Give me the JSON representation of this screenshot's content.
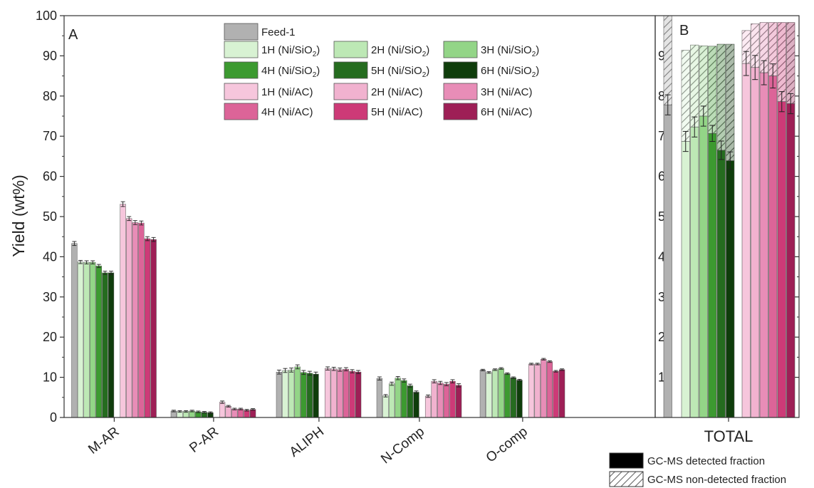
{
  "chart_data": {
    "type": "bar",
    "ylabel": "Yield (wt%)",
    "ylim": [
      0,
      100
    ],
    "yticks_a": [
      "0",
      "10",
      "20",
      "30",
      "40",
      "50",
      "60",
      "70",
      "80",
      "90",
      "100"
    ],
    "yticks_b": [
      "10",
      "20",
      "30",
      "40",
      "50",
      "60",
      "70",
      "80",
      "90"
    ],
    "panel_a_label": "A",
    "panel_b_label": "B",
    "categories": [
      "M-AR",
      "P-AR",
      "ALIPH",
      "N-Comp",
      "O-comp"
    ],
    "total_label": "TOTAL",
    "series": [
      {
        "name": "Feed-1",
        "color": "#b1b1b1",
        "values": [
          43.3,
          1.6,
          11.3,
          9.7,
          11.8
        ],
        "errors": [
          0.5,
          0.2,
          0.5,
          0.4,
          0.2
        ],
        "total_detected": 77.8,
        "total": 100,
        "total_error": 2.5
      },
      {
        "name": "1H (Ni/SiO",
        "sub": "2",
        "suffix": ")",
        "color": "#d8f2d3",
        "values": [
          38.7,
          1.5,
          11.7,
          5.4,
          11.2
        ],
        "errors": [
          0.4,
          0.2,
          0.5,
          0.3,
          0.2
        ],
        "total_detected": 68.7,
        "total": 91.4,
        "total_error": 2.5
      },
      {
        "name": "2H (Ni/SiO",
        "sub": "2",
        "suffix": ")",
        "color": "#bde8b5",
        "values": [
          38.6,
          1.5,
          11.8,
          8.4,
          11.9
        ],
        "errors": [
          0.4,
          0.2,
          0.5,
          0.4,
          0.2
        ],
        "total_detected": 72.3,
        "total": 92.7,
        "total_error": 2.5
      },
      {
        "name": "3H (Ni/SiO",
        "sub": "2",
        "suffix": ")",
        "color": "#93d587",
        "values": [
          38.6,
          1.6,
          12.6,
          9.8,
          12.2
        ],
        "errors": [
          0.4,
          0.2,
          0.5,
          0.4,
          0.2
        ],
        "total_detected": 75.0,
        "total": 92.5,
        "total_error": 2.5
      },
      {
        "name": "4H (Ni/SiO",
        "sub": "2",
        "suffix": ")",
        "color": "#3c9a30",
        "values": [
          37.7,
          1.4,
          11.2,
          9.2,
          10.9
        ],
        "errors": [
          0.4,
          0.2,
          0.5,
          0.4,
          0.2
        ],
        "total_detected": 70.7,
        "total": 92.4,
        "total_error": 2.0
      },
      {
        "name": "5H (Ni/SiO",
        "sub": "2",
        "suffix": ")",
        "color": "#256c1f",
        "values": [
          36.0,
          1.3,
          11.0,
          7.9,
          9.9
        ],
        "errors": [
          0.4,
          0.2,
          0.5,
          0.4,
          0.2
        ],
        "total_detected": 66.5,
        "total": 92.9,
        "total_error": 2.3
      },
      {
        "name": "6H (Ni/SiO",
        "sub": "2",
        "suffix": ")",
        "color": "#0f3d0b",
        "values": [
          36.0,
          1.2,
          10.8,
          6.3,
          9.3
        ],
        "errors": [
          0.4,
          0.2,
          0.5,
          0.3,
          0.2
        ],
        "total_detected": 63.9,
        "total": 92.9,
        "total_error": 2.2
      },
      {
        "name": "1H (Ni/AC)",
        "color": "#f6c6dc",
        "values": [
          53.1,
          3.8,
          12.2,
          5.3,
          13.3
        ],
        "errors": [
          0.6,
          0.3,
          0.4,
          0.3,
          0.2
        ],
        "total_detected": 88.1,
        "total": 96.3,
        "total_error": 3.0
      },
      {
        "name": "2H (Ni/AC)",
        "color": "#f1b2cf",
        "values": [
          49.5,
          2.8,
          12.1,
          9.0,
          13.3
        ],
        "errors": [
          0.5,
          0.2,
          0.4,
          0.4,
          0.2
        ],
        "total_detected": 87.1,
        "total": 98.0,
        "total_error": 3.0
      },
      {
        "name": "3H (Ni/AC)",
        "color": "#e88db7",
        "values": [
          48.5,
          2.1,
          11.9,
          8.6,
          14.5
        ],
        "errors": [
          0.5,
          0.2,
          0.4,
          0.4,
          0.2
        ],
        "total_detected": 85.8,
        "total": 98.3,
        "total_error": 3.0
      },
      {
        "name": "4H (Ni/AC)",
        "color": "#dc6498",
        "values": [
          48.4,
          2.1,
          12.0,
          8.3,
          13.9
        ],
        "errors": [
          0.5,
          0.2,
          0.4,
          0.4,
          0.2
        ],
        "total_detected": 85.0,
        "total": 98.3,
        "total_error": 3.0
      },
      {
        "name": "5H (Ni/AC)",
        "color": "#cd3a77",
        "values": [
          44.5,
          1.8,
          11.5,
          9.0,
          11.5
        ],
        "errors": [
          0.5,
          0.2,
          0.4,
          0.4,
          0.2
        ],
        "total_detected": 78.6,
        "total": 98.3,
        "total_error": 2.5
      },
      {
        "name": "6H (Ni/AC)",
        "color": "#9e1f56",
        "values": [
          44.3,
          2.0,
          11.3,
          8.0,
          11.9
        ],
        "errors": [
          0.5,
          0.2,
          0.4,
          0.4,
          0.2
        ],
        "total_detected": 78.1,
        "total": 98.3,
        "total_error": 2.5
      }
    ],
    "fraction_legend": [
      {
        "name": "GC-MS detected fraction",
        "pattern": "solid"
      },
      {
        "name": "GC-MS non-detected fraction",
        "pattern": "hatched"
      }
    ]
  }
}
